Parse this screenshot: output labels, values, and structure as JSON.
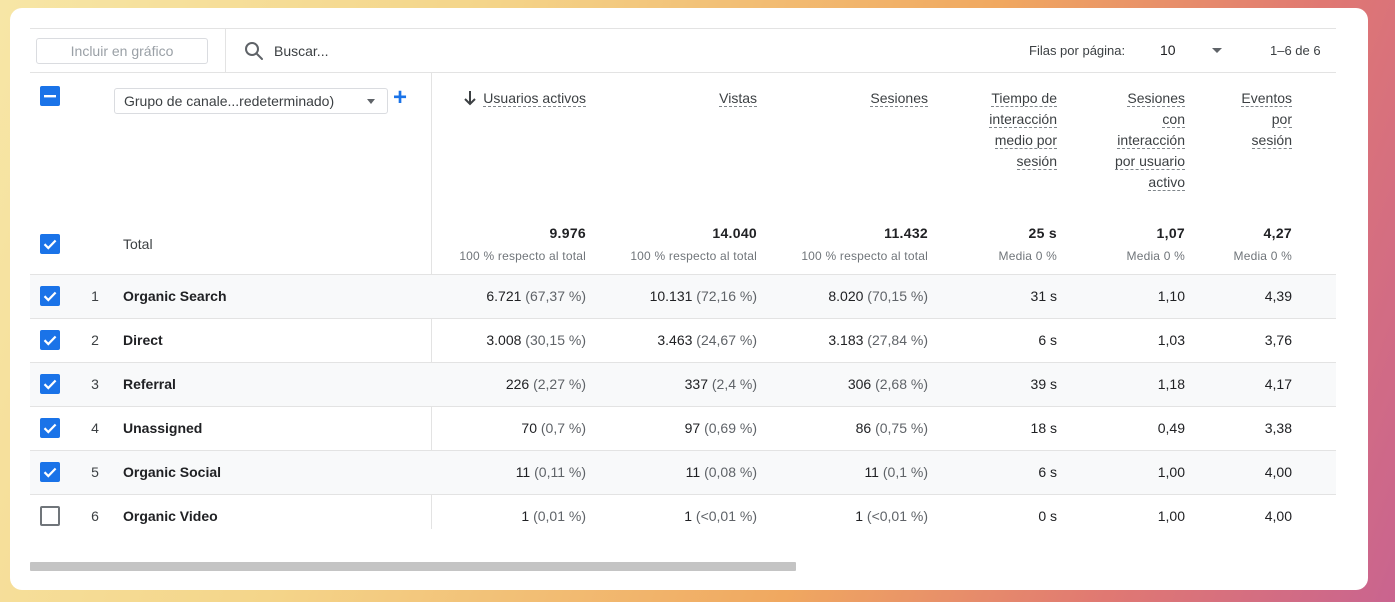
{
  "toolbar": {
    "chart_button_label": "Incluir en gráfico",
    "search_placeholder": "Buscar...",
    "rows_per_page_label": "Filas por página:",
    "rows_per_page_value": "10",
    "pagination": "1–6 de 6"
  },
  "dimension": {
    "selector_label": "Grupo de canale...redeterminado)",
    "add_label": "+"
  },
  "headers": [
    {
      "lines": [
        "Usuarios activos"
      ],
      "sorted": true
    },
    {
      "lines": [
        "Vistas"
      ]
    },
    {
      "lines": [
        "Sesiones"
      ]
    },
    {
      "lines": [
        "Tiempo de",
        "interacción",
        "medio por",
        "sesión"
      ]
    },
    {
      "lines": [
        "Sesiones",
        "con",
        "interacción",
        "por usuario",
        "activo"
      ]
    },
    {
      "lines": [
        "Eventos",
        "por",
        "sesión"
      ]
    }
  ],
  "totals": {
    "label": "Total",
    "values": [
      "9.976",
      "14.040",
      "11.432",
      "25 s",
      "1,07",
      "4,27"
    ],
    "subs": [
      "100 % respecto al total",
      "100 % respecto al total",
      "100 % respecto al total",
      "Media 0 %",
      "Media 0 %",
      "Media 0 %"
    ]
  },
  "rows": [
    {
      "index": "1",
      "name": "Organic Search",
      "checked": true,
      "c0": {
        "v": "6.721",
        "p": "(67,37 %)"
      },
      "c1": {
        "v": "10.131",
        "p": "(72,16 %)"
      },
      "c2": {
        "v": "8.020",
        "p": "(70,15 %)"
      },
      "c3": "31 s",
      "c4": "1,10",
      "c5": "4,39"
    },
    {
      "index": "2",
      "name": "Direct",
      "checked": true,
      "c0": {
        "v": "3.008",
        "p": "(30,15 %)"
      },
      "c1": {
        "v": "3.463",
        "p": "(24,67 %)"
      },
      "c2": {
        "v": "3.183",
        "p": "(27,84 %)"
      },
      "c3": "6 s",
      "c4": "1,03",
      "c5": "3,76"
    },
    {
      "index": "3",
      "name": "Referral",
      "checked": true,
      "c0": {
        "v": "226",
        "p": "(2,27 %)"
      },
      "c1": {
        "v": "337",
        "p": "(2,4 %)"
      },
      "c2": {
        "v": "306",
        "p": "(2,68 %)"
      },
      "c3": "39 s",
      "c4": "1,18",
      "c5": "4,17"
    },
    {
      "index": "4",
      "name": "Unassigned",
      "checked": true,
      "c0": {
        "v": "70",
        "p": "(0,7 %)"
      },
      "c1": {
        "v": "97",
        "p": "(0,69 %)"
      },
      "c2": {
        "v": "86",
        "p": "(0,75 %)"
      },
      "c3": "18 s",
      "c4": "0,49",
      "c5": "3,38"
    },
    {
      "index": "5",
      "name": "Organic Social",
      "checked": true,
      "c0": {
        "v": "11",
        "p": "(0,11 %)"
      },
      "c1": {
        "v": "11",
        "p": "(0,08 %)"
      },
      "c2": {
        "v": "11",
        "p": "(0,1 %)"
      },
      "c3": "6 s",
      "c4": "1,00",
      "c5": "4,00"
    },
    {
      "index": "6",
      "name": "Organic Video",
      "checked": false,
      "c0": {
        "v": "1",
        "p": "(0,01 %)"
      },
      "c1": {
        "v": "1",
        "p": "(<0,01 %)"
      },
      "c2": {
        "v": "1",
        "p": "(<0,01 %)"
      },
      "c3": "0 s",
      "c4": "1,00",
      "c5": "4,00"
    }
  ],
  "colors": {
    "accent": "#1a73e8",
    "row_shade": "#f8f9fa",
    "divider": "#e3e3e3",
    "muted_text": "#70757a"
  }
}
